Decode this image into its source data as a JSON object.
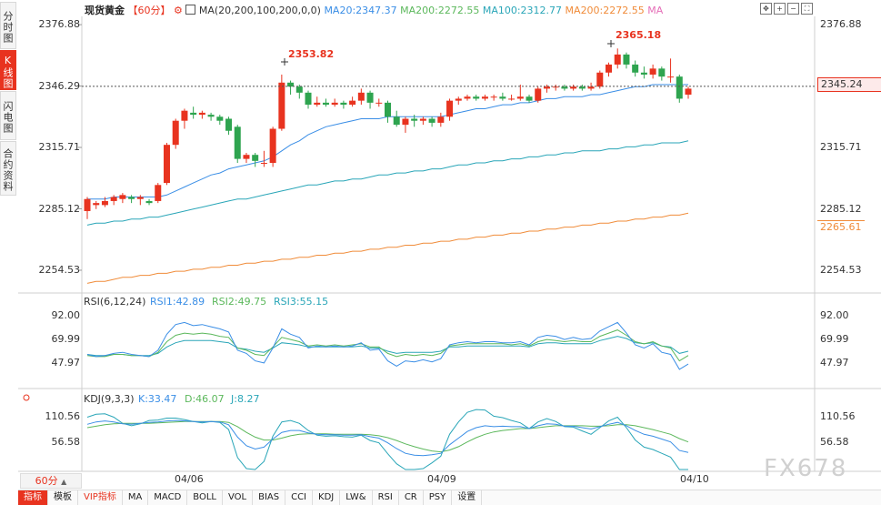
{
  "side_tabs": [
    {
      "label": "分时图",
      "active": false
    },
    {
      "label": "K线图",
      "active": true
    },
    {
      "label": "闪电图",
      "active": false
    },
    {
      "label": "合约资料",
      "active": false
    }
  ],
  "header": {
    "symbol": "现货黄金",
    "period": "【60分】",
    "ma_label": "MA(20,200,100,200,0,0)",
    "ma_values": [
      {
        "text": "MA20:2347.37",
        "color": "#3a8ee6"
      },
      {
        "text": "MA200:2272.55",
        "color": "#5cb85c"
      },
      {
        "text": "MA100:2312.77",
        "color": "#2aa6b8"
      },
      {
        "text": "MA200:2272.55",
        "color": "#f08c3a"
      },
      {
        "text": "MA",
        "color": "#e56fb8"
      }
    ]
  },
  "price_axis": {
    "ticks": [
      "2376.88",
      "2346.29",
      "2315.71",
      "2285.12",
      "2254.53"
    ],
    "current_price": "2345.24",
    "ma200_price": "2265.61"
  },
  "annotations": {
    "high1": "2353.82",
    "high2": "2365.18"
  },
  "rsi": {
    "label": "RSI(6,12,24)",
    "values": [
      {
        "text": "RSI1:42.89",
        "color": "#3a8ee6"
      },
      {
        "text": "RSI2:49.75",
        "color": "#5cb85c"
      },
      {
        "text": "RSI3:55.15",
        "color": "#2aa6b8"
      }
    ],
    "ticks": [
      "92.00",
      "69.99",
      "47.97"
    ]
  },
  "kdj": {
    "label": "KDJ(9,3,3)",
    "values": [
      {
        "text": "K:33.47",
        "color": "#3a8ee6"
      },
      {
        "text": "D:46.07",
        "color": "#5cb85c"
      },
      {
        "text": "J:8.27",
        "color": "#2aa6b8"
      }
    ],
    "ticks": [
      "110.56",
      "56.58"
    ]
  },
  "x_axis": {
    "labels": [
      "04/06",
      "04/09",
      "04/10"
    ]
  },
  "period_selector": "60分",
  "toolbar": [
    "指标",
    "模板",
    "VIP指标",
    "MA",
    "MACD",
    "BOLL",
    "VOL",
    "BIAS",
    "CCI",
    "KDJ",
    "LW&",
    "RSI",
    "CR",
    "PSY",
    "设置"
  ],
  "watermark": "FX678",
  "colors": {
    "up": "#e8331f",
    "down": "#2ea44f",
    "ma20": "#3a8ee6",
    "ma100": "#2aa6b8",
    "ma200": "#f08c3a"
  },
  "chart_data": {
    "type": "candlestick",
    "ylim": [
      2245,
      2381
    ],
    "candles": [
      [
        2284,
        2290,
        2280,
        2291
      ],
      [
        2287,
        2288,
        2285,
        2289
      ],
      [
        2287,
        2289,
        2286,
        2291
      ],
      [
        2289,
        2291,
        2287,
        2292
      ],
      [
        2290,
        2292,
        2288,
        2293
      ],
      [
        2291,
        2290,
        2288,
        2292
      ],
      [
        2290,
        2291,
        2287,
        2292
      ],
      [
        2289,
        2288,
        2287,
        2290
      ],
      [
        2289,
        2297,
        2288,
        2298
      ],
      [
        2298,
        2317,
        2297,
        2318
      ],
      [
        2317,
        2329,
        2315,
        2330
      ],
      [
        2329,
        2334,
        2325,
        2335
      ],
      [
        2333,
        2332,
        2330,
        2336
      ],
      [
        2332,
        2333,
        2330,
        2334
      ],
      [
        2332,
        2331,
        2329,
        2333
      ],
      [
        2331,
        2329,
        2327,
        2332
      ],
      [
        2330,
        2324,
        2322,
        2331
      ],
      [
        2326,
        2310,
        2308,
        2327
      ],
      [
        2310,
        2312,
        2308,
        2313
      ],
      [
        2312,
        2309,
        2306,
        2313
      ],
      [
        2308,
        2308,
        2306,
        2314
      ],
      [
        2308,
        2325,
        2306,
        2326
      ],
      [
        2325,
        2348,
        2324,
        2352
      ],
      [
        2348,
        2346,
        2342,
        2349
      ],
      [
        2346,
        2343,
        2340,
        2347
      ],
      [
        2343,
        2337,
        2335,
        2344
      ],
      [
        2337,
        2338,
        2336,
        2341
      ],
      [
        2338,
        2337,
        2336,
        2340
      ],
      [
        2337,
        2338,
        2336,
        2340
      ],
      [
        2338,
        2337,
        2335,
        2339
      ],
      [
        2337,
        2339,
        2336,
        2341
      ],
      [
        2339,
        2343,
        2337,
        2345
      ],
      [
        2343,
        2338,
        2335,
        2344
      ],
      [
        2338,
        2338,
        2336,
        2340
      ],
      [
        2338,
        2331,
        2328,
        2339
      ],
      [
        2331,
        2327,
        2326,
        2334
      ],
      [
        2327,
        2330,
        2323,
        2331
      ],
      [
        2330,
        2329,
        2326,
        2332
      ],
      [
        2329,
        2330,
        2327,
        2331
      ],
      [
        2330,
        2328,
        2326,
        2331
      ],
      [
        2328,
        2331,
        2326,
        2333
      ],
      [
        2331,
        2339,
        2329,
        2340
      ],
      [
        2339,
        2340,
        2337,
        2341
      ],
      [
        2340,
        2341,
        2339,
        2342
      ],
      [
        2341,
        2340,
        2339,
        2342
      ],
      [
        2340,
        2341,
        2339,
        2342
      ],
      [
        2341,
        2341,
        2339,
        2342
      ],
      [
        2341,
        2340,
        2339,
        2343
      ],
      [
        2340,
        2340,
        2339,
        2342
      ],
      [
        2340,
        2341,
        2339,
        2347
      ],
      [
        2341,
        2339,
        2338,
        2342
      ],
      [
        2339,
        2345,
        2338,
        2346
      ],
      [
        2345,
        2346,
        2343,
        2347
      ],
      [
        2346,
        2346,
        2344,
        2347
      ],
      [
        2346,
        2345,
        2344,
        2347
      ],
      [
        2345,
        2346,
        2344,
        2347
      ],
      [
        2346,
        2345,
        2344,
        2347
      ],
      [
        2345,
        2346,
        2344,
        2348
      ],
      [
        2346,
        2353,
        2345,
        2354
      ],
      [
        2353,
        2357,
        2351,
        2358
      ],
      [
        2357,
        2362,
        2355,
        2365
      ],
      [
        2362,
        2357,
        2355,
        2363
      ],
      [
        2357,
        2353,
        2351,
        2359
      ],
      [
        2353,
        2352,
        2350,
        2356
      ],
      [
        2352,
        2355,
        2350,
        2357
      ],
      [
        2355,
        2351,
        2349,
        2356
      ],
      [
        2351,
        2351,
        2348,
        2360
      ],
      [
        2351,
        2340,
        2338,
        2352
      ],
      [
        2342,
        2345,
        2340,
        2346
      ]
    ],
    "ma20": [
      2290,
      2290,
      2290,
      2291,
      2291,
      2291,
      2291,
      2291,
      2291,
      2292,
      2294,
      2296,
      2298,
      2300,
      2302,
      2303,
      2305,
      2306,
      2307,
      2308,
      2309,
      2311,
      2314,
      2317,
      2319,
      2322,
      2324,
      2326,
      2327,
      2328,
      2329,
      2330,
      2330,
      2330,
      2331,
      2331,
      2331,
      2331,
      2331,
      2331,
      2331,
      2332,
      2333,
      2334,
      2335,
      2335,
      2336,
      2337,
      2337,
      2338,
      2338,
      2339,
      2340,
      2340,
      2341,
      2341,
      2341,
      2342,
      2342,
      2343,
      2344,
      2345,
      2346,
      2346,
      2347,
      2347,
      2347,
      2347,
      2347
    ],
    "ma100": [
      2277,
      2278,
      2278,
      2279,
      2279,
      2280,
      2280,
      2281,
      2281,
      2282,
      2283,
      2284,
      2285,
      2286,
      2287,
      2288,
      2289,
      2290,
      2290,
      2291,
      2292,
      2293,
      2294,
      2295,
      2296,
      2297,
      2297,
      2298,
      2299,
      2299,
      2300,
      2300,
      2301,
      2302,
      2302,
      2303,
      2303,
      2304,
      2304,
      2305,
      2305,
      2306,
      2307,
      2307,
      2308,
      2308,
      2309,
      2309,
      2310,
      2310,
      2311,
      2311,
      2312,
      2312,
      2313,
      2313,
      2314,
      2314,
      2314,
      2315,
      2315,
      2316,
      2316,
      2317,
      2317,
      2318,
      2318,
      2318,
      2319
    ],
    "ma200": [
      2248,
      2249,
      2249,
      2250,
      2251,
      2251,
      2252,
      2252,
      2253,
      2253,
      2254,
      2254,
      2255,
      2255,
      2256,
      2256,
      2257,
      2257,
      2258,
      2258,
      2259,
      2259,
      2260,
      2260,
      2261,
      2261,
      2262,
      2262,
      2263,
      2263,
      2264,
      2264,
      2265,
      2265,
      2266,
      2266,
      2267,
      2267,
      2268,
      2268,
      2269,
      2269,
      2270,
      2270,
      2271,
      2271,
      2272,
      2272,
      2273,
      2273,
      2274,
      2274,
      2275,
      2275,
      2276,
      2276,
      2277,
      2277,
      2278,
      2278,
      2279,
      2279,
      2280,
      2280,
      2281,
      2281,
      2282,
      2282,
      2283
    ],
    "rsi_ylim": [
      30,
      100
    ],
    "rsi1": [
      56,
      54,
      55,
      57,
      58,
      56,
      55,
      54,
      60,
      75,
      84,
      86,
      83,
      84,
      82,
      80,
      77,
      60,
      57,
      50,
      48,
      62,
      80,
      75,
      72,
      62,
      64,
      63,
      64,
      63,
      64,
      67,
      60,
      61,
      50,
      45,
      50,
      49,
      51,
      49,
      52,
      65,
      67,
      68,
      67,
      68,
      68,
      67,
      67,
      68,
      65,
      72,
      74,
      73,
      70,
      72,
      70,
      71,
      78,
      82,
      86,
      76,
      65,
      62,
      66,
      58,
      56,
      42,
      47
    ],
    "rsi2": [
      55,
      54,
      54,
      56,
      56,
      55,
      55,
      54,
      58,
      68,
      74,
      76,
      75,
      76,
      75,
      73,
      72,
      62,
      60,
      56,
      55,
      63,
      72,
      70,
      68,
      64,
      65,
      64,
      65,
      64,
      65,
      66,
      63,
      63,
      57,
      54,
      56,
      55,
      56,
      55,
      57,
      64,
      65,
      66,
      66,
      66,
      66,
      66,
      65,
      66,
      64,
      68,
      70,
      69,
      68,
      69,
      68,
      68,
      73,
      76,
      79,
      74,
      68,
      66,
      68,
      64,
      62,
      50,
      55
    ],
    "rsi3": [
      56,
      55,
      55,
      56,
      56,
      55,
      55,
      55,
      57,
      63,
      67,
      69,
      69,
      69,
      69,
      68,
      67,
      62,
      61,
      59,
      58,
      62,
      67,
      66,
      65,
      63,
      63,
      63,
      63,
      63,
      63,
      64,
      62,
      62,
      59,
      57,
      58,
      58,
      58,
      58,
      59,
      63,
      63,
      64,
      64,
      64,
      64,
      64,
      64,
      64,
      63,
      66,
      67,
      67,
      66,
      66,
      66,
      66,
      69,
      71,
      73,
      71,
      67,
      66,
      67,
      64,
      63,
      57,
      59
    ],
    "kdj_ylim": [
      0,
      130
    ],
    "k": [
      95,
      100,
      102,
      100,
      96,
      95,
      97,
      99,
      100,
      102,
      103,
      102,
      101,
      100,
      101,
      100,
      94,
      68,
      50,
      43,
      47,
      64,
      78,
      82,
      82,
      77,
      74,
      73,
      73,
      72,
      72,
      73,
      69,
      66,
      56,
      44,
      34,
      30,
      29,
      31,
      34,
      52,
      66,
      80,
      88,
      92,
      90,
      91,
      90,
      90,
      86,
      92,
      96,
      95,
      91,
      91,
      88,
      85,
      90,
      95,
      99,
      92,
      82,
      74,
      70,
      64,
      58,
      40,
      36
    ],
    "d": [
      88,
      91,
      94,
      96,
      97,
      97,
      97,
      97,
      98,
      99,
      100,
      101,
      101,
      101,
      101,
      101,
      99,
      90,
      78,
      68,
      62,
      62,
      66,
      71,
      74,
      75,
      75,
      75,
      74,
      74,
      74,
      74,
      73,
      71,
      67,
      61,
      54,
      48,
      43,
      39,
      37,
      41,
      48,
      58,
      67,
      74,
      79,
      82,
      84,
      86,
      86,
      88,
      90,
      92,
      92,
      92,
      92,
      91,
      91,
      92,
      94,
      94,
      92,
      88,
      84,
      79,
      74,
      65,
      58
    ],
    "j": [
      110,
      116,
      117,
      110,
      97,
      92,
      96,
      103,
      104,
      108,
      108,
      105,
      101,
      98,
      101,
      99,
      84,
      25,
      2,
      0,
      17,
      70,
      100,
      103,
      97,
      82,
      72,
      70,
      71,
      69,
      68,
      72,
      61,
      56,
      33,
      12,
      0,
      0,
      2,
      14,
      28,
      74,
      100,
      120,
      126,
      125,
      112,
      109,
      103,
      98,
      86,
      100,
      107,
      101,
      90,
      89,
      81,
      74,
      88,
      102,
      110,
      88,
      62,
      47,
      42,
      34,
      26,
      0,
      0
    ]
  }
}
